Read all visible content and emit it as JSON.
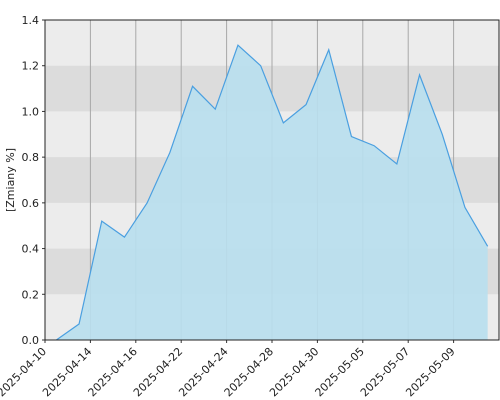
{
  "chart_data": {
    "type": "area",
    "y_label": "[Zmiany %]",
    "x": [
      0.5,
      1.5,
      2.5,
      3.5,
      4.5,
      5.5,
      6.5,
      7.5,
      8.5,
      9.5,
      10.5,
      11.5,
      12.5,
      13.5,
      14.5,
      15.5,
      16.5,
      17.5,
      18.5,
      19.5
    ],
    "values": [
      0.0,
      0.07,
      0.52,
      0.45,
      0.6,
      0.82,
      1.11,
      1.01,
      1.29,
      1.2,
      0.95,
      1.03,
      1.27,
      0.89,
      0.85,
      0.77,
      1.16,
      0.9,
      0.58,
      0.41
    ],
    "color": "#4a9fe0",
    "fill": "#b8dfee",
    "xlim": [
      0,
      20
    ],
    "xticks": [
      {
        "value": 0,
        "label": "2025-04-10"
      },
      {
        "value": 2,
        "label": "2025-04-14"
      },
      {
        "value": 4,
        "label": "2025-04-16"
      },
      {
        "value": 6,
        "label": "2025-04-22"
      },
      {
        "value": 8,
        "label": "2025-04-24"
      },
      {
        "value": 10,
        "label": "2025-04-28"
      },
      {
        "value": 12,
        "label": "2025-04-30"
      },
      {
        "value": 14,
        "label": "2025-05-05"
      },
      {
        "value": 16,
        "label": "2025-05-07"
      },
      {
        "value": 18,
        "label": "2025-05-09"
      }
    ],
    "ylim": [
      0,
      1.4
    ],
    "yticks": [
      {
        "value": 0,
        "label": "0.0"
      },
      0.2,
      0.4,
      0.6,
      0.8,
      {
        "value": 1,
        "label": "1.0"
      },
      1.2,
      1.4
    ],
    "grid": true,
    "bands": true
  }
}
